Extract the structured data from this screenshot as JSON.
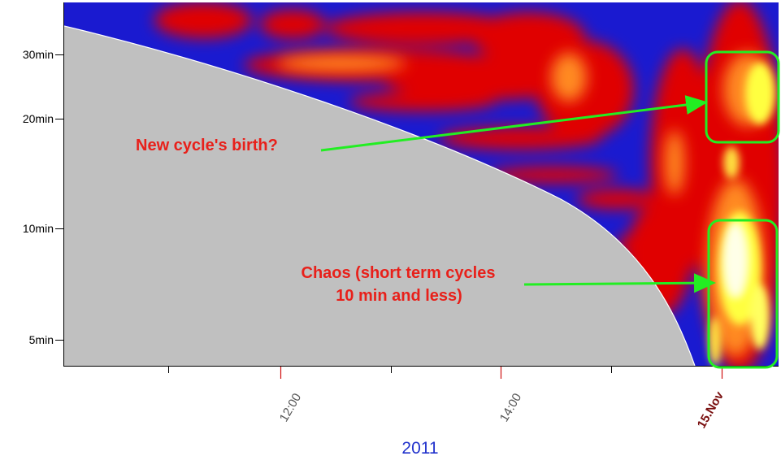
{
  "chart_data": {
    "type": "heatmap",
    "title": "",
    "xlabel": "2011",
    "ylabel": "",
    "x_tick_labels": [
      "12:00",
      "14:00",
      "15.Nov"
    ],
    "y_tick_labels": [
      "5min",
      "10min",
      "20min",
      "30min"
    ],
    "y_scale": "log",
    "y_ticks_minutes": [
      5,
      10,
      20,
      30
    ],
    "colormap": [
      "#1a1ad0",
      "#e00000",
      "#ffff40",
      "#ffffff"
    ],
    "masked_region_color": "#c0c0c0",
    "annotations": [
      {
        "id": "birth",
        "text_lines": [
          "New cycle's birth?"
        ]
      },
      {
        "id": "chaos",
        "text_lines": [
          "Chaos (short term cycles",
          "10 min and less)"
        ]
      }
    ],
    "highlight_color": "#22ee22"
  }
}
